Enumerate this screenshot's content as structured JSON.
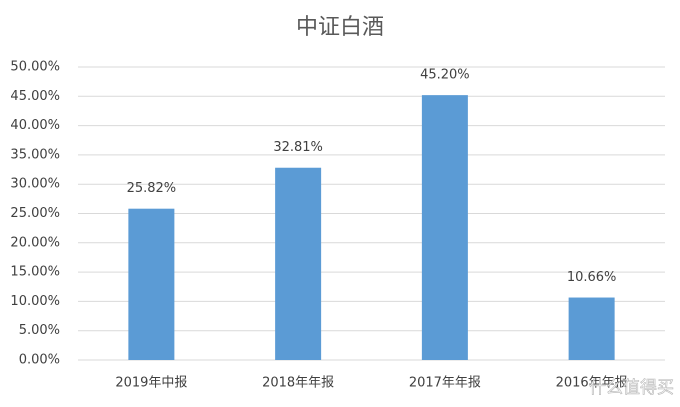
{
  "chart_data": {
    "type": "bar",
    "title": "中证白酒",
    "categories": [
      "2019年中报",
      "2018年年报",
      "2017年年报",
      "2016年年报"
    ],
    "values": [
      25.82,
      32.81,
      45.2,
      10.66
    ],
    "value_labels": [
      "25.82%",
      "32.81%",
      "45.20%",
      "10.66%"
    ],
    "color": "#5b9bd5",
    "ylim": [
      0,
      50
    ],
    "yticks": [
      {
        "value": 0,
        "label": "0.00%"
      },
      {
        "value": 5,
        "label": "5.00%"
      },
      {
        "value": 10,
        "label": "10.00%"
      },
      {
        "value": 15,
        "label": "15.00%"
      },
      {
        "value": 20,
        "label": "20.00%"
      },
      {
        "value": 25,
        "label": "25.00%"
      },
      {
        "value": 30,
        "label": "30.00%"
      },
      {
        "value": 35,
        "label": "35.00%"
      },
      {
        "value": 40,
        "label": "40.00%"
      },
      {
        "value": 45,
        "label": "45.00%"
      },
      {
        "value": 50,
        "label": "50.00%"
      }
    ],
    "grid": true,
    "watermark": "什么值得买"
  }
}
